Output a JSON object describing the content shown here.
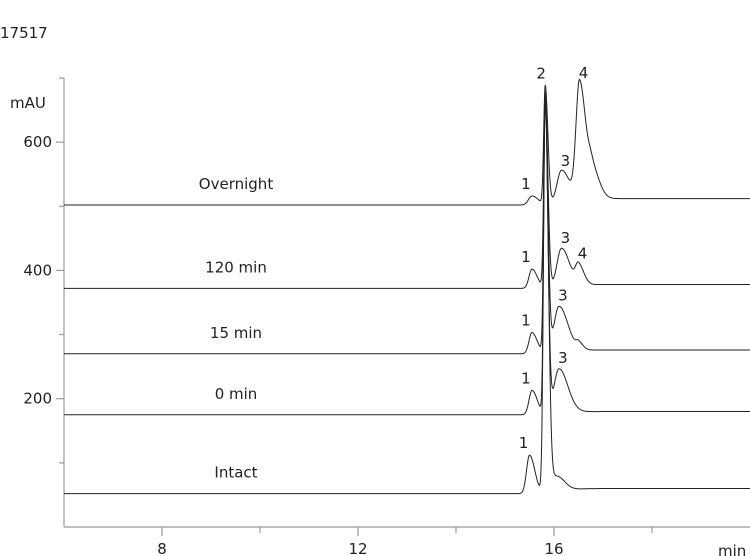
{
  "chart_data": {
    "type": "line",
    "sample_id": "17517",
    "ylabel": "mAU",
    "xlabel": "min",
    "xlim": [
      6,
      20
    ],
    "ylim": [
      0,
      700
    ],
    "x_ticks": [
      8,
      12,
      16
    ],
    "y_ticks": [
      200,
      400,
      600
    ],
    "grid": false,
    "legend": "none",
    "series": [
      {
        "name": "Overnight",
        "baseline": 502,
        "end_baseline": 512,
        "peaks": [
          {
            "label": "1",
            "x": 15.55,
            "height": 14,
            "width": 0.07
          },
          {
            "label": "2",
            "x": 15.82,
            "height": 185,
            "width": 0.03
          },
          {
            "label": "3",
            "x": 16.15,
            "height": 50,
            "width": 0.09
          },
          {
            "label": "4",
            "x": 16.52,
            "height": 183,
            "width": 0.07
          },
          {
            "label": "",
            "x": 16.78,
            "height": 45,
            "width": 0.08
          }
        ]
      },
      {
        "name": "120 min",
        "baseline": 372,
        "end_baseline": 378,
        "peaks": [
          {
            "label": "1",
            "x": 15.55,
            "height": 30,
            "width": 0.06
          },
          {
            "label": "",
            "x": 15.82,
            "height": 300,
            "width": 0.03
          },
          {
            "label": "3",
            "x": 16.15,
            "height": 60,
            "width": 0.09
          },
          {
            "label": "4",
            "x": 16.5,
            "height": 30,
            "width": 0.06
          }
        ]
      },
      {
        "name": "15 min",
        "baseline": 270,
        "end_baseline": 276,
        "peaks": [
          {
            "label": "1",
            "x": 15.55,
            "height": 33,
            "width": 0.06
          },
          {
            "label": "",
            "x": 15.82,
            "height": 400,
            "width": 0.03
          },
          {
            "label": "3",
            "x": 16.1,
            "height": 72,
            "width": 0.1
          },
          {
            "label": "",
            "x": 16.5,
            "height": 10,
            "width": 0.05
          }
        ]
      },
      {
        "name": "0 min",
        "baseline": 175,
        "end_baseline": 180,
        "peaks": [
          {
            "label": "1",
            "x": 15.55,
            "height": 38,
            "width": 0.06
          },
          {
            "label": "",
            "x": 15.82,
            "height": 500,
            "width": 0.03
          },
          {
            "label": "3",
            "x": 16.1,
            "height": 70,
            "width": 0.1
          }
        ]
      },
      {
        "name": "Intact",
        "baseline": 52,
        "end_baseline": 60,
        "peaks": [
          {
            "label": "1",
            "x": 15.5,
            "height": 60,
            "width": 0.06
          },
          {
            "label": "",
            "x": 15.82,
            "height": 610,
            "width": 0.035
          },
          {
            "label": "",
            "x": 16.05,
            "height": 25,
            "width": 0.09
          }
        ]
      }
    ]
  }
}
